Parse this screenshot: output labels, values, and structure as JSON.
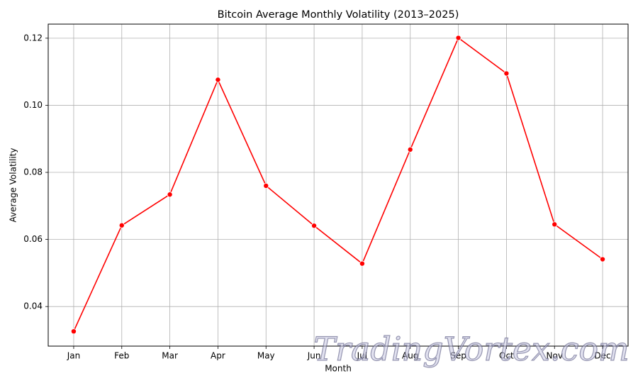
{
  "chart_data": {
    "type": "line",
    "title": "Bitcoin Average Monthly Volatility (2013–2025)",
    "x_label": "Month",
    "y_label": "Average Volatility",
    "categories": [
      "Jan",
      "Feb",
      "Mar",
      "Apr",
      "May",
      "Jun",
      "Jul",
      "Aug",
      "Sep",
      "Oct",
      "Nov",
      "Dec"
    ],
    "series": [
      {
        "name": "Average Volatility",
        "color": "#ff0000",
        "values": [
          0.0326,
          0.0642,
          0.0734,
          0.1076,
          0.076,
          0.0641,
          0.0528,
          0.0868,
          0.1201,
          0.1095,
          0.0645,
          0.0541
        ]
      }
    ],
    "ylim": [
      0.0282,
      0.1242
    ],
    "yticks": [
      0.04,
      0.06,
      0.08,
      {
        "value": 0.1,
        "label": "0.10"
      },
      0.12
    ],
    "grid": true,
    "watermark": "TradingVortex.com"
  }
}
